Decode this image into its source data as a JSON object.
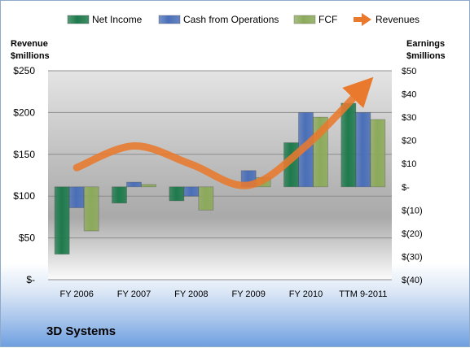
{
  "chart_data": {
    "type": "bar",
    "title": "3D Systems",
    "categories": [
      "FY 2006",
      "FY 2007",
      "FY 2008",
      "FY 2009",
      "FY 2010",
      "TTM 9-2011"
    ],
    "left_axis": {
      "label_lines": [
        "Revenue",
        "$millions"
      ],
      "range": [
        0,
        250
      ],
      "ticks": [
        0,
        50,
        100,
        150,
        200,
        250
      ],
      "tick_labels": [
        "$-",
        "$50",
        "$100",
        "$150",
        "$200",
        "$250"
      ]
    },
    "right_axis": {
      "label_lines": [
        "Earnings",
        "$millions"
      ],
      "range": [
        -40,
        50
      ],
      "ticks": [
        -40,
        -30,
        -20,
        -10,
        0,
        10,
        20,
        30,
        40,
        50
      ],
      "tick_labels": [
        "$(40)",
        "$(30)",
        "$(20)",
        "$(10)",
        "$-",
        "$10",
        "$20",
        "$30",
        "$40",
        "$50"
      ]
    },
    "series": [
      {
        "name": "Net Income",
        "axis": "right",
        "kind": "bar",
        "color": "#1e7a4c",
        "values": [
          -29,
          -7,
          -6,
          0,
          19,
          36
        ]
      },
      {
        "name": "Cash from Operations",
        "axis": "right",
        "kind": "bar",
        "color": "#4a6fb8",
        "values": [
          -9,
          2,
          -4,
          7,
          32,
          32
        ]
      },
      {
        "name": "FCF",
        "axis": "right",
        "kind": "bar",
        "color": "#8caa5a",
        "values": [
          -19,
          1,
          -10,
          4,
          30,
          29
        ]
      },
      {
        "name": "Revenues",
        "axis": "left",
        "kind": "line",
        "color": "#e8792d",
        "values": [
          134,
          160,
          138,
          113,
          160,
          230
        ]
      }
    ],
    "grid": true,
    "legend": "top"
  }
}
